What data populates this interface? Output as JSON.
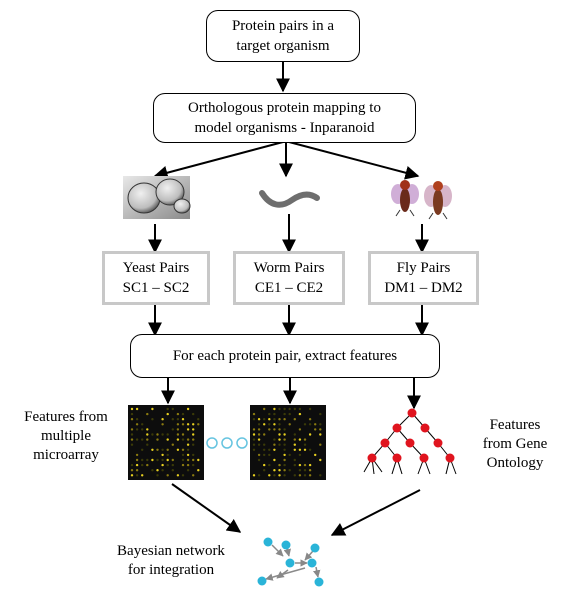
{
  "top_box": {
    "line1": "Protein pairs in a",
    "line2": "target organism"
  },
  "mapping_box": {
    "line1": "Orthologous protein mapping to",
    "line2": "model organisms - Inparanoid"
  },
  "organisms": [
    {
      "name": "Yeast Pairs",
      "ids": "SC1 – SC2",
      "icon": "yeast-cells-image"
    },
    {
      "name": "Worm Pairs",
      "ids": "CE1 – CE2",
      "icon": "worm-image"
    },
    {
      "name": "Fly Pairs",
      "ids": "DM1 – DM2",
      "icon": "fruit-fly-image"
    }
  ],
  "extract_box": {
    "label": "For each protein pair, extract features"
  },
  "microarray_label": {
    "line1": "Features from",
    "line2": "multiple",
    "line3": "microarray"
  },
  "go_label": {
    "line1": "Features",
    "line2": "from Gene",
    "line3": "Ontology"
  },
  "bayes_label": {
    "line1": "Bayesian network",
    "line2": "for integration"
  },
  "colors": {
    "grey_border": "#c8c8c8",
    "go_node": "#e0141e",
    "bn_node": "#2ab4d8",
    "ellipsis": "#66c4e0",
    "microarray_spot": "#e8d020"
  }
}
